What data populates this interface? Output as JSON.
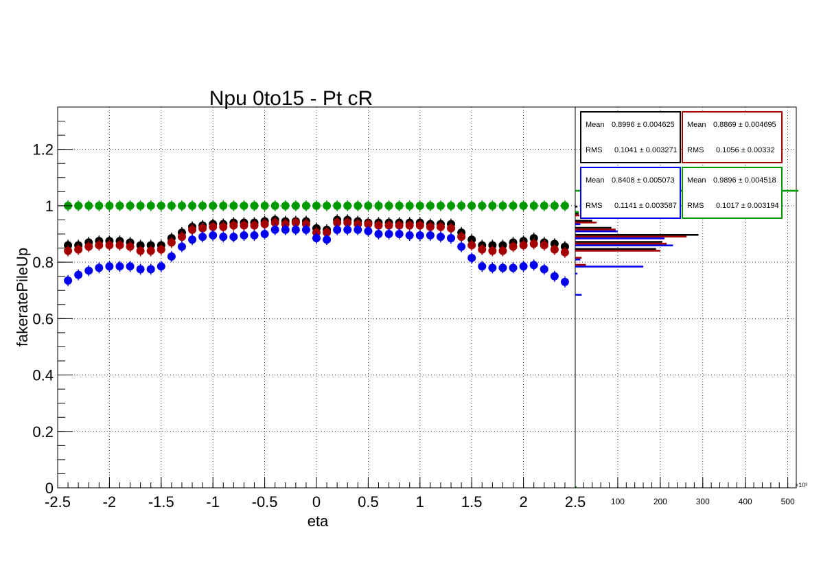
{
  "chart_data": [
    {
      "type": "scatter",
      "title": "Npu 0to15 - Pt cR",
      "xlabel": "eta",
      "ylabel": "fakeratePileUp",
      "xlim": [
        -2.5,
        2.5
      ],
      "ylim": [
        0,
        1.35
      ],
      "grid": true,
      "x_ticks": [
        "-2.5",
        "-2",
        "-1.5",
        "-1",
        "-0.5",
        "0",
        "0.5",
        "1",
        "1.5",
        "2",
        "2.5"
      ],
      "y_ticks": [
        "0",
        "0.2",
        "0.4",
        "0.6",
        "0.8",
        "1",
        "1.2"
      ],
      "x": [
        -2.4,
        -2.3,
        -2.2,
        -2.1,
        -2.0,
        -1.9,
        -1.8,
        -1.7,
        -1.6,
        -1.5,
        -1.4,
        -1.3,
        -1.2,
        -1.1,
        -1.0,
        -0.9,
        -0.8,
        -0.7,
        -0.6,
        -0.5,
        -0.4,
        -0.3,
        -0.2,
        -0.1,
        0.0,
        0.1,
        0.2,
        0.3,
        0.4,
        0.5,
        0.6,
        0.7,
        0.8,
        0.9,
        1.0,
        1.1,
        1.2,
        1.3,
        1.4,
        1.5,
        1.6,
        1.7,
        1.8,
        1.9,
        2.0,
        2.1,
        2.2,
        2.3,
        2.4
      ],
      "series": [
        {
          "color": "#000000",
          "values": [
            0.86,
            0.86,
            0.87,
            0.875,
            0.875,
            0.875,
            0.87,
            0.86,
            0.86,
            0.86,
            0.885,
            0.905,
            0.925,
            0.93,
            0.935,
            0.935,
            0.94,
            0.94,
            0.94,
            0.945,
            0.95,
            0.945,
            0.945,
            0.945,
            0.92,
            0.915,
            0.95,
            0.95,
            0.945,
            0.94,
            0.94,
            0.94,
            0.94,
            0.94,
            0.94,
            0.935,
            0.935,
            0.935,
            0.905,
            0.88,
            0.86,
            0.86,
            0.86,
            0.87,
            0.875,
            0.885,
            0.87,
            0.865,
            0.855
          ]
        },
        {
          "color": "#a50000",
          "values": [
            0.84,
            0.845,
            0.855,
            0.86,
            0.86,
            0.86,
            0.855,
            0.84,
            0.84,
            0.845,
            0.87,
            0.89,
            0.915,
            0.92,
            0.925,
            0.925,
            0.93,
            0.93,
            0.93,
            0.935,
            0.94,
            0.935,
            0.94,
            0.935,
            0.905,
            0.905,
            0.94,
            0.94,
            0.935,
            0.935,
            0.93,
            0.93,
            0.93,
            0.93,
            0.93,
            0.925,
            0.925,
            0.92,
            0.89,
            0.86,
            0.845,
            0.84,
            0.84,
            0.855,
            0.86,
            0.865,
            0.86,
            0.845,
            0.835
          ]
        },
        {
          "color": "#0000ee",
          "values": [
            0.735,
            0.755,
            0.77,
            0.78,
            0.785,
            0.785,
            0.785,
            0.775,
            0.775,
            0.785,
            0.82,
            0.855,
            0.88,
            0.89,
            0.895,
            0.89,
            0.89,
            0.895,
            0.895,
            0.9,
            0.915,
            0.915,
            0.915,
            0.915,
            0.885,
            0.88,
            0.915,
            0.915,
            0.915,
            0.91,
            0.9,
            0.9,
            0.9,
            0.895,
            0.895,
            0.895,
            0.89,
            0.885,
            0.855,
            0.815,
            0.785,
            0.78,
            0.78,
            0.78,
            0.785,
            0.79,
            0.775,
            0.75,
            0.73
          ]
        },
        {
          "color": "#009900",
          "values": [
            1.0,
            1.0,
            1.0,
            1.0,
            1.0,
            1.0,
            1.0,
            1.0,
            1.0,
            1.0,
            1.0,
            1.0,
            1.0,
            1.0,
            1.0,
            1.0,
            1.0,
            1.0,
            1.0,
            1.0,
            1.0,
            1.0,
            1.0,
            1.0,
            1.0,
            1.0,
            1.0,
            1.0,
            1.0,
            1.0,
            1.0,
            1.0,
            1.0,
            1.0,
            1.0,
            1.0,
            1.0,
            1.0,
            1.0,
            1.0,
            1.0,
            1.0,
            1.0,
            1.0,
            1.0,
            1.0,
            1.0,
            1.0,
            1.0
          ]
        }
      ]
    },
    {
      "type": "bar",
      "orientation": "horizontal",
      "xlim": [
        0,
        520
      ],
      "x_ticks": [
        "100",
        "200",
        "300",
        "400",
        "500"
      ],
      "x_exponent": "×10³",
      "ylim": [
        0,
        1.35
      ],
      "grid": true,
      "series": [
        {
          "color": "#000000",
          "bins": [
            [
              0.825,
              0.85,
              190
            ],
            [
              0.85,
              0.875,
              205
            ],
            [
              0.875,
              0.9,
              290
            ],
            [
              0.9,
              0.925,
              85
            ],
            [
              0.925,
              0.95,
              40
            ],
            [
              0.95,
              0.975,
              8
            ],
            [
              0.975,
              1.0,
              5
            ]
          ]
        },
        {
          "color": "#a50000",
          "bins": [
            [
              0.775,
              0.8,
              25
            ],
            [
              0.8,
              0.825,
              15
            ],
            [
              0.825,
              0.85,
              200
            ],
            [
              0.85,
              0.875,
              215
            ],
            [
              0.875,
              0.9,
              262
            ],
            [
              0.9,
              0.925,
              95
            ],
            [
              0.925,
              0.95,
              50
            ],
            [
              0.95,
              0.975,
              10
            ]
          ]
        },
        {
          "color": "#0000ee",
          "bins": [
            [
              0.675,
              0.7,
              15
            ],
            [
              0.75,
              0.775,
              5
            ],
            [
              0.775,
              0.8,
              160
            ],
            [
              0.8,
              0.825,
              12
            ],
            [
              0.85,
              0.875,
              230
            ],
            [
              0.875,
              0.9,
              210
            ],
            [
              0.9,
              0.925,
              100
            ],
            [
              0.925,
              0.95,
              12
            ]
          ]
        },
        {
          "color": "#009900",
          "bins": [
            [
              0.0,
              0.025,
              3
            ],
            [
              0.975,
              1.0,
              8
            ],
            [
              1.05,
              1.075,
              525
            ]
          ]
        }
      ]
    }
  ],
  "stats": [
    {
      "color": "#000000",
      "mean_label": "Mean",
      "mean_value": "0.8996 ± 0.004625",
      "rms_label": "RMS",
      "rms_value": "0.1041 ± 0.003271"
    },
    {
      "color": "#a50000",
      "mean_label": "Mean",
      "mean_value": "0.8869 ± 0.004695",
      "rms_label": "RMS",
      "rms_value": "0.1056 ± 0.00332"
    },
    {
      "color": "#0000ee",
      "mean_label": "Mean",
      "mean_value": "0.8408 ± 0.005073",
      "rms_label": "RMS",
      "rms_value": "0.1141 ± 0.003587"
    },
    {
      "color": "#009900",
      "mean_label": "Mean",
      "mean_value": "0.9896 ± 0.004518",
      "rms_label": "RMS",
      "rms_value": "0.1017 ± 0.003194"
    }
  ]
}
